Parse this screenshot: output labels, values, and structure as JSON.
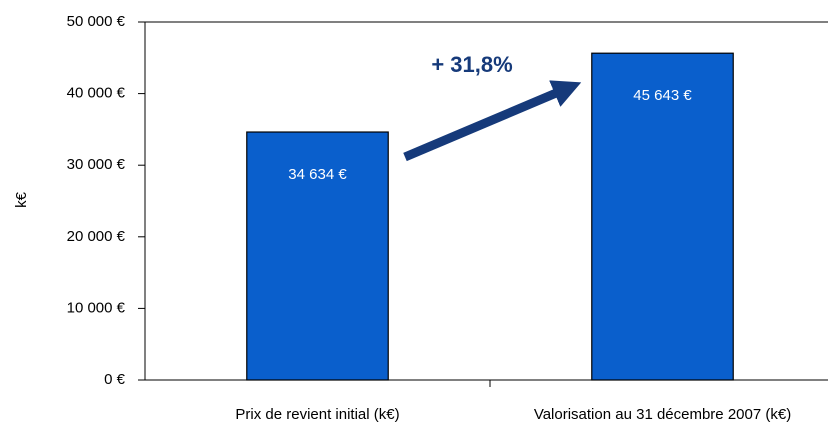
{
  "chart_data": {
    "type": "bar",
    "y_label": "k€",
    "annotation": "+ 31,8%",
    "categories": [
      "Prix de revient initial (k€)",
      "Valorisation au 31 décembre 2007 (k€)"
    ],
    "values": [
      34634,
      45643
    ],
    "value_labels": [
      "34 634 €",
      "45 643 €"
    ],
    "color": "#0a5fcc",
    "ylim": [
      0,
      50000
    ],
    "yticks": [
      {
        "value": 0,
        "label": "0 €"
      },
      {
        "value": 10000,
        "label": "10 000 €"
      },
      {
        "value": 20000,
        "label": "20 000 €"
      },
      {
        "value": 30000,
        "label": "30 000 €"
      },
      {
        "value": 40000,
        "label": "40 000 €"
      },
      {
        "value": 50000,
        "label": "50 000 €"
      }
    ],
    "grid": false
  }
}
